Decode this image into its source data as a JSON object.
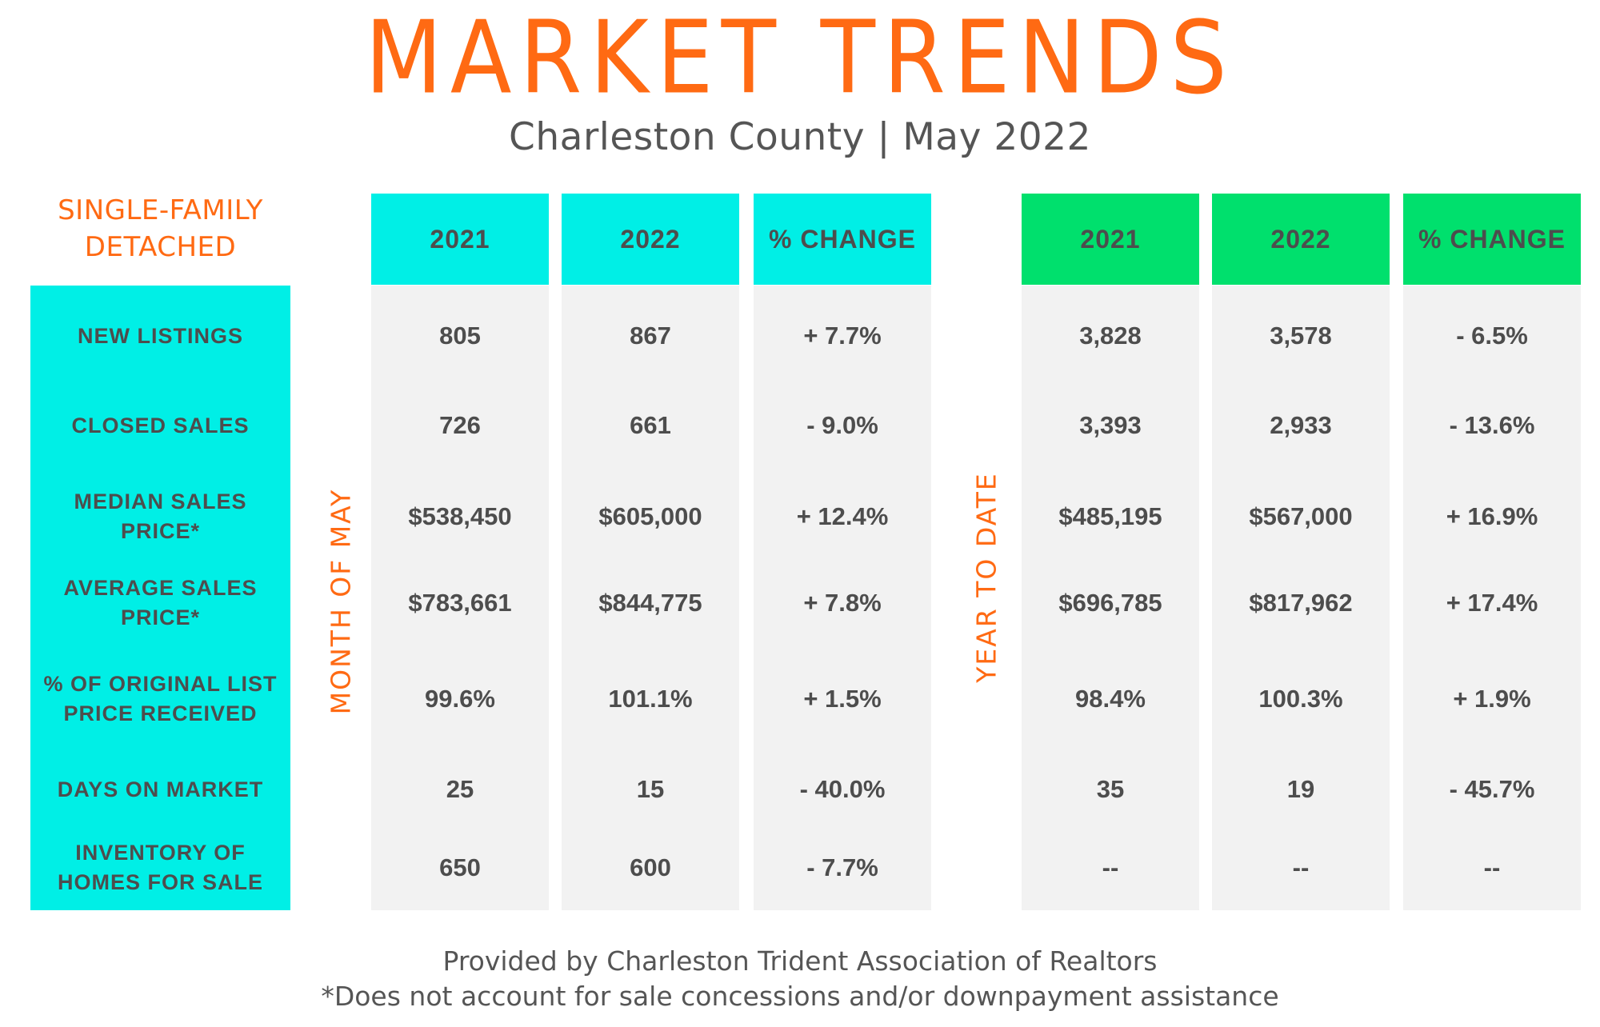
{
  "header": {
    "title": "MARKET TRENDS",
    "subtitle": "Charleston County | May 2022"
  },
  "category": [
    "SINGLE-FAMILY",
    "DETACHED"
  ],
  "side_labels": {
    "month": "MONTH OF MAY",
    "ytd": "YEAR TO DATE"
  },
  "colors": {
    "accent_orange": "#ff6a13",
    "cyan": "#00efe6",
    "green": "#00e06d",
    "cell_gray": "#f2f2f2",
    "text_dark": "#4d4d4d"
  },
  "rows": [
    {
      "lines": [
        "NEW LISTINGS"
      ]
    },
    {
      "lines": [
        "CLOSED SALES"
      ]
    },
    {
      "lines": [
        "MEDIAN SALES",
        "PRICE*"
      ]
    },
    {
      "lines": [
        "AVERAGE SALES",
        "PRICE*"
      ]
    },
    {
      "lines": [
        "% OF ORIGINAL LIST",
        "PRICE RECEIVED"
      ]
    },
    {
      "lines": [
        "DAYS ON MARKET"
      ]
    },
    {
      "lines": [
        "INVENTORY OF",
        "HOMES FOR SALE"
      ]
    }
  ],
  "chart_data": {
    "type": "table",
    "row_labels": [
      "NEW LISTINGS",
      "CLOSED SALES",
      "MEDIAN SALES PRICE*",
      "AVERAGE SALES PRICE*",
      "% OF ORIGINAL LIST PRICE RECEIVED",
      "DAYS ON MARKET",
      "INVENTORY OF HOMES FOR SALE"
    ],
    "column_groups": [
      {
        "name": "MONTH OF MAY",
        "columns": [
          {
            "header": "2021",
            "values": [
              "805",
              "726",
              "$538,450",
              "$783,661",
              "99.6%",
              "25",
              "650"
            ]
          },
          {
            "header": "2022",
            "values": [
              "867",
              "661",
              "$605,000",
              "$844,775",
              "101.1%",
              "15",
              "600"
            ]
          },
          {
            "header": "% CHANGE",
            "values": [
              "+ 7.7%",
              "- 9.0%",
              "+ 12.4%",
              "+ 7.8%",
              "+ 1.5%",
              "- 40.0%",
              "- 7.7%"
            ]
          }
        ]
      },
      {
        "name": "YEAR TO DATE",
        "columns": [
          {
            "header": "2021",
            "values": [
              "3,828",
              "3,393",
              "$485,195",
              "$696,785",
              "98.4%",
              "35",
              "--"
            ]
          },
          {
            "header": "2022",
            "values": [
              "3,578",
              "2,933",
              "$567,000",
              "$817,962",
              "100.3%",
              "19",
              "--"
            ]
          },
          {
            "header": "% CHANGE",
            "values": [
              "- 6.5%",
              "- 13.6%",
              "+ 16.9%",
              "+ 17.4%",
              "+ 1.9%",
              "- 45.7%",
              "--"
            ]
          }
        ]
      }
    ]
  },
  "footer": {
    "source": "Provided by Charleston Trident Association of Realtors",
    "note": "*Does not account for sale concessions and/or downpayment assistance"
  }
}
